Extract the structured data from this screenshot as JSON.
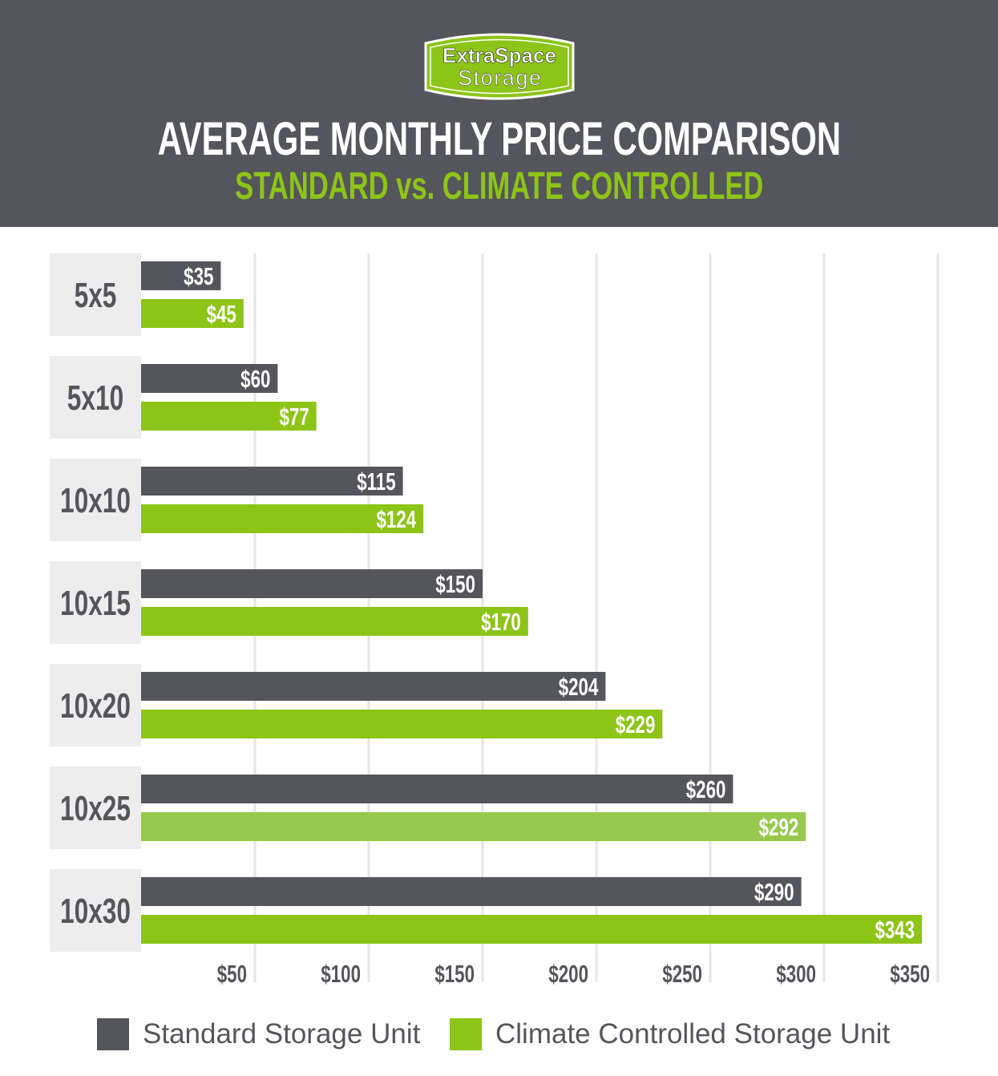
{
  "header": {
    "logo_text": [
      "ExtraSpace",
      "Storage"
    ],
    "title": "AVERAGE MONTHLY PRICE COMPARISON",
    "subtitle": "STANDARD vs. CLIMATE CONTROLLED"
  },
  "colors": {
    "background_header": "#55565b",
    "standard": "#55565b",
    "climate": "#8dc418",
    "climate_highlight": "#97c94e",
    "label_box": "#ededed",
    "grid": "#e6e6e6"
  },
  "chart_data": {
    "type": "bar",
    "orientation": "horizontal",
    "title": "AVERAGE MONTHLY PRICE COMPARISON",
    "subtitle": "STANDARD vs. CLIMATE CONTROLLED",
    "categories": [
      "5x5",
      "5x10",
      "10x10",
      "10x15",
      "10x20",
      "10x25",
      "10x30"
    ],
    "series": [
      {
        "name": "Standard Storage Unit",
        "values": [
          35,
          60,
          115,
          150,
          204,
          260,
          290
        ],
        "labels": [
          "$35",
          "$60",
          "$115",
          "$150",
          "$204",
          "$260",
          "$290"
        ]
      },
      {
        "name": "Climate Controlled Storage Unit",
        "values": [
          45,
          77,
          124,
          170,
          229,
          292,
          343
        ],
        "labels": [
          "$45",
          "$77",
          "$124",
          "$170",
          "$229",
          "$292",
          "$343"
        ]
      }
    ],
    "xticks": [
      50,
      100,
      150,
      200,
      250,
      300,
      350
    ],
    "xtick_labels": [
      "$50",
      "$100",
      "$150",
      "$200",
      "$250",
      "$300",
      "$350"
    ],
    "xlim": [
      0,
      350
    ],
    "grid": true,
    "legend": "bottom"
  },
  "legend": {
    "items": [
      "Standard Storage Unit",
      "Climate Controlled Storage Unit"
    ]
  }
}
